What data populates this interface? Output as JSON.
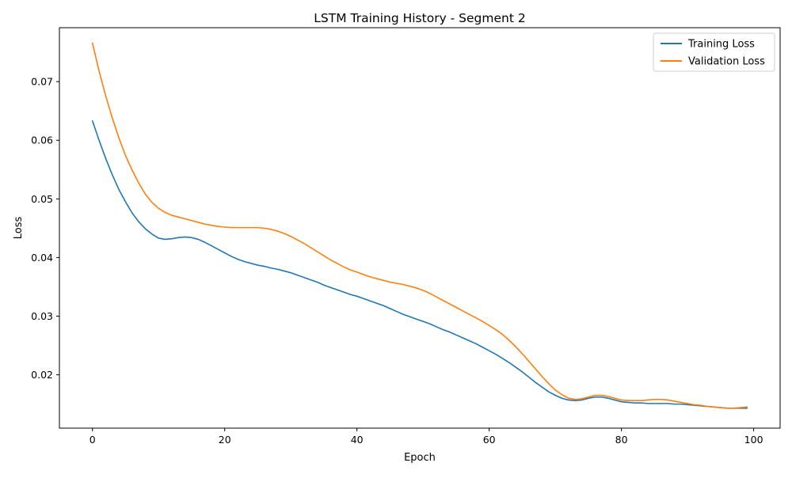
{
  "chart_data": {
    "type": "line",
    "title": "LSTM Training History - Segment 2",
    "xlabel": "Epoch",
    "ylabel": "Loss",
    "xlim": [
      -5,
      104
    ],
    "ylim": [
      0.0109,
      0.0792
    ],
    "xticks": [
      0,
      20,
      40,
      60,
      80,
      100
    ],
    "xtick_labels": [
      "0",
      "20",
      "40",
      "60",
      "80",
      "100"
    ],
    "yticks": [
      0.02,
      0.03,
      0.04,
      0.05,
      0.06,
      0.07
    ],
    "ytick_labels": [
      "0.02",
      "0.03",
      "0.04",
      "0.05",
      "0.06",
      "0.07"
    ],
    "grid": false,
    "legend_position": "top-right",
    "series": [
      {
        "name": "Training Loss",
        "color": "#1f77b4",
        "x": [
          0,
          1,
          2,
          3,
          4,
          5,
          6,
          7,
          8,
          9,
          10,
          11,
          12,
          13,
          14,
          15,
          16,
          17,
          18,
          19,
          20,
          21,
          22,
          23,
          24,
          25,
          26,
          27,
          28,
          29,
          30,
          31,
          32,
          33,
          34,
          35,
          36,
          37,
          38,
          39,
          40,
          41,
          42,
          43,
          44,
          45,
          46,
          47,
          48,
          49,
          50,
          51,
          52,
          53,
          54,
          55,
          56,
          57,
          58,
          59,
          60,
          61,
          62,
          63,
          64,
          65,
          66,
          67,
          68,
          69,
          70,
          71,
          72,
          73,
          74,
          75,
          76,
          77,
          78,
          79,
          80,
          81,
          82,
          83,
          84,
          85,
          86,
          87,
          88,
          89,
          90,
          91,
          92,
          93,
          94,
          95,
          96,
          97,
          98,
          99
        ],
        "values": [
          0.0633,
          0.06,
          0.0569,
          0.0541,
          0.0516,
          0.0495,
          0.0476,
          0.0461,
          0.0449,
          0.044,
          0.0433,
          0.0431,
          0.0432,
          0.0434,
          0.0435,
          0.0434,
          0.0431,
          0.0426,
          0.042,
          0.0414,
          0.0408,
          0.0402,
          0.0397,
          0.0393,
          0.039,
          0.0387,
          0.0385,
          0.0382,
          0.038,
          0.0377,
          0.0374,
          0.037,
          0.0366,
          0.0362,
          0.0358,
          0.0353,
          0.0349,
          0.0345,
          0.0341,
          0.0337,
          0.0334,
          0.033,
          0.0326,
          0.0322,
          0.0318,
          0.0313,
          0.0308,
          0.0303,
          0.0299,
          0.0295,
          0.0291,
          0.0287,
          0.0282,
          0.0277,
          0.0273,
          0.0268,
          0.0263,
          0.0258,
          0.0253,
          0.0247,
          0.0241,
          0.0235,
          0.0228,
          0.0221,
          0.0213,
          0.0205,
          0.0196,
          0.0187,
          0.0179,
          0.0171,
          0.0165,
          0.016,
          0.0157,
          0.0156,
          0.0157,
          0.016,
          0.0162,
          0.0162,
          0.016,
          0.0157,
          0.0154,
          0.0153,
          0.0152,
          0.0152,
          0.0151,
          0.0151,
          0.0151,
          0.0151,
          0.015,
          0.015,
          0.0149,
          0.0148,
          0.0147,
          0.0146,
          0.0145,
          0.0144,
          0.0143,
          0.0143,
          0.0143,
          0.0143
        ]
      },
      {
        "name": "Validation Loss",
        "color": "#ff7f0e",
        "x": [
          0,
          1,
          2,
          3,
          4,
          5,
          6,
          7,
          8,
          9,
          10,
          11,
          12,
          13,
          14,
          15,
          16,
          17,
          18,
          19,
          20,
          21,
          22,
          23,
          24,
          25,
          26,
          27,
          28,
          29,
          30,
          31,
          32,
          33,
          34,
          35,
          36,
          37,
          38,
          39,
          40,
          41,
          42,
          43,
          44,
          45,
          46,
          47,
          48,
          49,
          50,
          51,
          52,
          53,
          54,
          55,
          56,
          57,
          58,
          59,
          60,
          61,
          62,
          63,
          64,
          65,
          66,
          67,
          68,
          69,
          70,
          71,
          72,
          73,
          74,
          75,
          76,
          77,
          78,
          79,
          80,
          81,
          82,
          83,
          84,
          85,
          86,
          87,
          88,
          89,
          90,
          91,
          92,
          93,
          94,
          95,
          96,
          97,
          98,
          99
        ],
        "values": [
          0.0766,
          0.0718,
          0.0676,
          0.0638,
          0.0604,
          0.0574,
          0.0549,
          0.0527,
          0.0508,
          0.0494,
          0.0484,
          0.0477,
          0.0472,
          0.0469,
          0.0466,
          0.0463,
          0.046,
          0.0457,
          0.0455,
          0.0453,
          0.0452,
          0.0451,
          0.0451,
          0.0451,
          0.0451,
          0.0451,
          0.045,
          0.0448,
          0.0445,
          0.0441,
          0.0436,
          0.043,
          0.0424,
          0.0417,
          0.041,
          0.0403,
          0.0396,
          0.039,
          0.0384,
          0.0379,
          0.0375,
          0.0371,
          0.0367,
          0.0364,
          0.0361,
          0.0358,
          0.0356,
          0.0354,
          0.0351,
          0.0348,
          0.0344,
          0.0339,
          0.0333,
          0.0327,
          0.0321,
          0.0315,
          0.0309,
          0.0303,
          0.0297,
          0.0291,
          0.0284,
          0.0277,
          0.0269,
          0.0259,
          0.0248,
          0.0236,
          0.0223,
          0.021,
          0.0197,
          0.0185,
          0.0174,
          0.0166,
          0.016,
          0.0158,
          0.0159,
          0.0162,
          0.0165,
          0.0165,
          0.0163,
          0.016,
          0.0157,
          0.0156,
          0.0156,
          0.0156,
          0.0157,
          0.0158,
          0.0158,
          0.0157,
          0.0155,
          0.0153,
          0.0151,
          0.0149,
          0.0148,
          0.0146,
          0.0145,
          0.0144,
          0.0143,
          0.0143,
          0.0144,
          0.0145
        ]
      }
    ]
  }
}
